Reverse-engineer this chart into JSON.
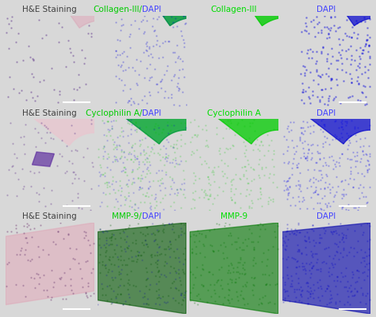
{
  "rows": 3,
  "cols": 4,
  "fig_bg": "#e8e8e8",
  "panel_bg": "#000000",
  "col_labels": [
    [
      "H&E Staining",
      "#404040"
    ],
    [
      "Collagen-III/DAPI",
      "#00dd00"
    ],
    [
      "Collagen-III",
      "#00dd00"
    ],
    [
      "DAPI",
      "#4444ff"
    ]
  ],
  "row2_col_labels": [
    [
      "H&E Staining",
      "#404040"
    ],
    [
      "Cyclophilin A/DAPI",
      "#00dd00"
    ],
    [
      "Cyclophilin A",
      "#00dd00"
    ],
    [
      "DAPI",
      "#4444ff"
    ]
  ],
  "row3_col_labels": [
    [
      "H&E Staining",
      "#404040"
    ],
    [
      "MMP-9/DAPI",
      "#00dd00"
    ],
    [
      "MMP-9",
      "#00dd00"
    ],
    [
      "DAPI",
      "#4444ff"
    ]
  ],
  "label_fontsize": 7.5,
  "scalebar_color": "#ffffff",
  "background_color": "#d8d8d8"
}
